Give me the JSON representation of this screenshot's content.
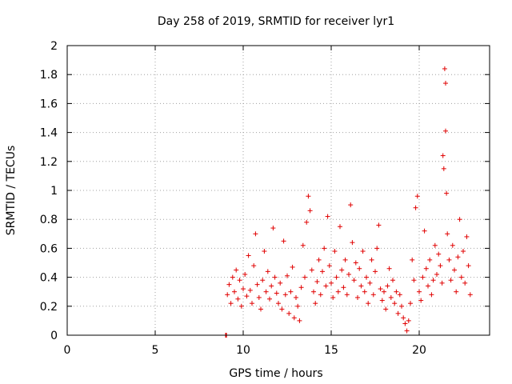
{
  "chart_data": {
    "type": "scatter",
    "title": "Day 258 of 2019, SRMTID for receiver lyr1",
    "xlabel": "GPS time / hours",
    "ylabel": "SRMTID / TECUs",
    "xlim": [
      0,
      24
    ],
    "ylim": [
      0,
      2
    ],
    "xticks": [
      0,
      5,
      10,
      15,
      20
    ],
    "yticks": [
      0,
      0.2,
      0.4,
      0.6,
      0.8,
      1,
      1.2,
      1.4,
      1.6,
      1.8,
      2
    ],
    "xtick_labels": [
      "0",
      "5",
      "10",
      "15",
      "20"
    ],
    "ytick_labels": [
      "0",
      "0.2",
      "0.4",
      "0.6",
      "0.8",
      "1",
      "1.2",
      "1.4",
      "1.6",
      "1.8",
      "2"
    ],
    "grid": true,
    "marker": "+",
    "marker_color": "#e00000",
    "series": [
      {
        "name": "lyr1",
        "points": [
          [
            9.0,
            0.0
          ],
          [
            9.02,
            0.0
          ],
          [
            9.05,
            0.0
          ],
          [
            9.1,
            0.28
          ],
          [
            9.2,
            0.35
          ],
          [
            9.3,
            0.22
          ],
          [
            9.4,
            0.4
          ],
          [
            9.5,
            0.3
          ],
          [
            9.6,
            0.45
          ],
          [
            9.7,
            0.25
          ],
          [
            9.8,
            0.38
          ],
          [
            9.9,
            0.2
          ],
          [
            10.0,
            0.32
          ],
          [
            10.1,
            0.42
          ],
          [
            10.2,
            0.27
          ],
          [
            10.3,
            0.55
          ],
          [
            10.4,
            0.31
          ],
          [
            10.5,
            0.22
          ],
          [
            10.6,
            0.48
          ],
          [
            10.7,
            0.7
          ],
          [
            10.8,
            0.35
          ],
          [
            10.9,
            0.26
          ],
          [
            11.0,
            0.18
          ],
          [
            11.1,
            0.38
          ],
          [
            11.2,
            0.58
          ],
          [
            11.3,
            0.3
          ],
          [
            11.4,
            0.44
          ],
          [
            11.5,
            0.25
          ],
          [
            11.6,
            0.34
          ],
          [
            11.7,
            0.74
          ],
          [
            11.8,
            0.4
          ],
          [
            11.9,
            0.29
          ],
          [
            12.0,
            0.22
          ],
          [
            12.1,
            0.36
          ],
          [
            12.2,
            0.18
          ],
          [
            12.3,
            0.65
          ],
          [
            12.4,
            0.28
          ],
          [
            12.5,
            0.41
          ],
          [
            12.6,
            0.15
          ],
          [
            12.7,
            0.3
          ],
          [
            12.8,
            0.47
          ],
          [
            12.9,
            0.12
          ],
          [
            13.0,
            0.26
          ],
          [
            13.1,
            0.2
          ],
          [
            13.2,
            0.1
          ],
          [
            13.3,
            0.33
          ],
          [
            13.4,
            0.62
          ],
          [
            13.5,
            0.4
          ],
          [
            13.6,
            0.78
          ],
          [
            13.7,
            0.96
          ],
          [
            13.8,
            0.86
          ],
          [
            13.9,
            0.45
          ],
          [
            14.0,
            0.3
          ],
          [
            14.1,
            0.22
          ],
          [
            14.2,
            0.37
          ],
          [
            14.3,
            0.52
          ],
          [
            14.4,
            0.28
          ],
          [
            14.5,
            0.44
          ],
          [
            14.6,
            0.6
          ],
          [
            14.7,
            0.34
          ],
          [
            14.8,
            0.82
          ],
          [
            14.9,
            0.48
          ],
          [
            15.0,
            0.36
          ],
          [
            15.1,
            0.26
          ],
          [
            15.2,
            0.58
          ],
          [
            15.3,
            0.4
          ],
          [
            15.4,
            0.3
          ],
          [
            15.5,
            0.75
          ],
          [
            15.6,
            0.45
          ],
          [
            15.7,
            0.33
          ],
          [
            15.8,
            0.52
          ],
          [
            15.9,
            0.28
          ],
          [
            16.0,
            0.42
          ],
          [
            16.1,
            0.9
          ],
          [
            16.2,
            0.64
          ],
          [
            16.3,
            0.38
          ],
          [
            16.4,
            0.5
          ],
          [
            16.5,
            0.26
          ],
          [
            16.6,
            0.46
          ],
          [
            16.7,
            0.34
          ],
          [
            16.8,
            0.58
          ],
          [
            16.9,
            0.3
          ],
          [
            17.0,
            0.4
          ],
          [
            17.1,
            0.22
          ],
          [
            17.2,
            0.36
          ],
          [
            17.3,
            0.52
          ],
          [
            17.4,
            0.28
          ],
          [
            17.5,
            0.44
          ],
          [
            17.6,
            0.6
          ],
          [
            17.7,
            0.76
          ],
          [
            17.8,
            0.32
          ],
          [
            17.9,
            0.24
          ],
          [
            18.0,
            0.3
          ],
          [
            18.1,
            0.18
          ],
          [
            18.2,
            0.34
          ],
          [
            18.3,
            0.46
          ],
          [
            18.4,
            0.26
          ],
          [
            18.5,
            0.38
          ],
          [
            18.6,
            0.22
          ],
          [
            18.7,
            0.3
          ],
          [
            18.8,
            0.15
          ],
          [
            18.9,
            0.28
          ],
          [
            19.0,
            0.2
          ],
          [
            19.1,
            0.12
          ],
          [
            19.2,
            0.08
          ],
          [
            19.3,
            0.03
          ],
          [
            19.4,
            0.1
          ],
          [
            19.5,
            0.22
          ],
          [
            19.6,
            0.52
          ],
          [
            19.7,
            0.38
          ],
          [
            19.8,
            0.88
          ],
          [
            19.9,
            0.96
          ],
          [
            20.0,
            0.3
          ],
          [
            20.1,
            0.24
          ],
          [
            20.2,
            0.4
          ],
          [
            20.3,
            0.72
          ],
          [
            20.4,
            0.46
          ],
          [
            20.5,
            0.34
          ],
          [
            20.6,
            0.52
          ],
          [
            20.7,
            0.28
          ],
          [
            20.8,
            0.38
          ],
          [
            20.9,
            0.62
          ],
          [
            21.0,
            0.42
          ],
          [
            21.1,
            0.56
          ],
          [
            21.2,
            0.48
          ],
          [
            21.3,
            0.36
          ],
          [
            21.35,
            1.24
          ],
          [
            21.4,
            1.15
          ],
          [
            21.45,
            1.84
          ],
          [
            21.5,
            1.74
          ],
          [
            21.5,
            1.41
          ],
          [
            21.55,
            0.98
          ],
          [
            21.6,
            0.7
          ],
          [
            21.7,
            0.52
          ],
          [
            21.8,
            0.38
          ],
          [
            21.9,
            0.62
          ],
          [
            22.0,
            0.45
          ],
          [
            22.1,
            0.3
          ],
          [
            22.2,
            0.54
          ],
          [
            22.3,
            0.8
          ],
          [
            22.4,
            0.4
          ],
          [
            22.5,
            0.58
          ],
          [
            22.6,
            0.36
          ],
          [
            22.7,
            0.68
          ],
          [
            22.8,
            0.48
          ],
          [
            22.9,
            0.28
          ]
        ]
      }
    ]
  }
}
